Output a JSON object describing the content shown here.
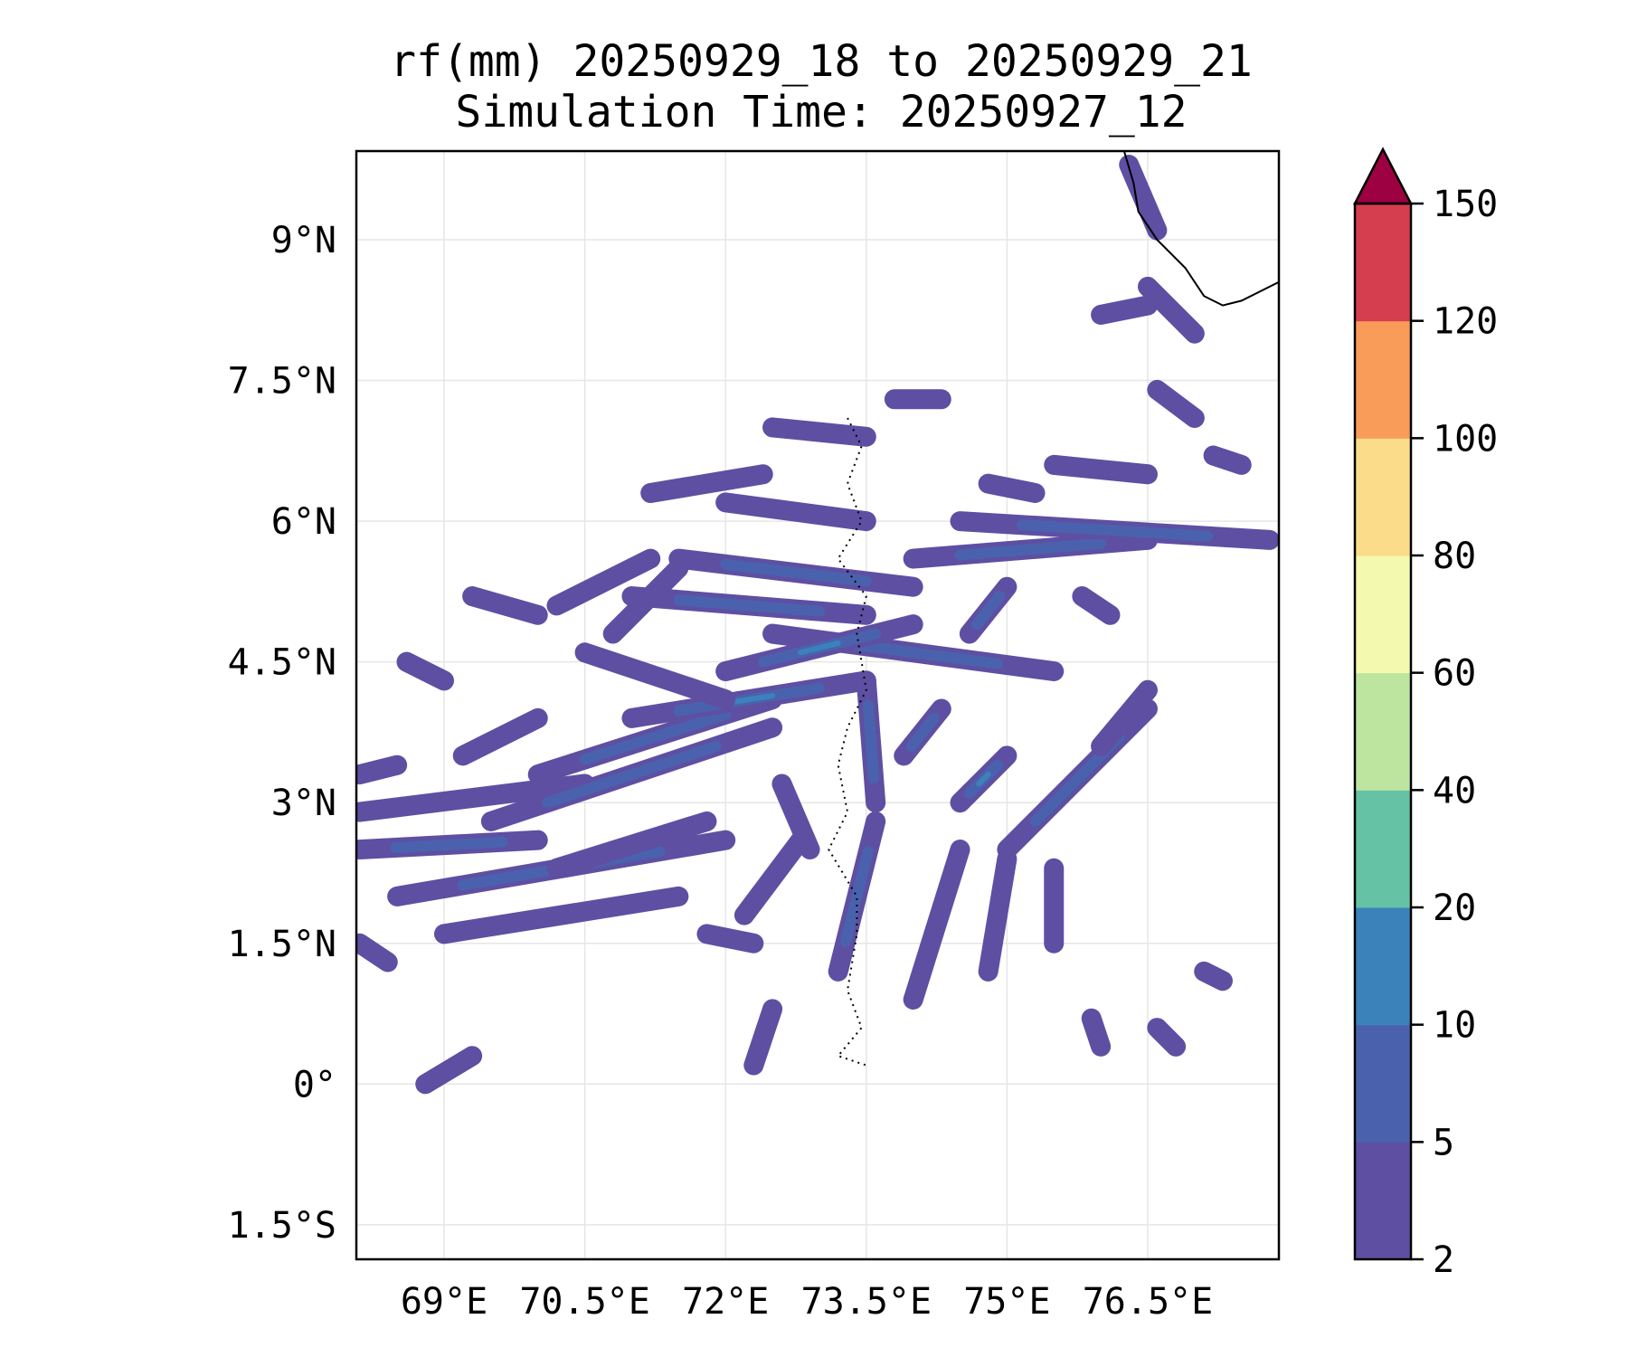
{
  "chart_data": {
    "type": "heatmap",
    "title": "rf(mm) 20250929_18 to 20250929_21",
    "subtitle": "Simulation Time: 20250927_12",
    "xlabel": "",
    "ylabel": "",
    "xlim": [
      68.07,
      77.9
    ],
    "ylim": [
      -1.86,
      9.94
    ],
    "grid": true,
    "x_ticks": [
      69,
      70.5,
      72,
      73.5,
      75,
      76.5
    ],
    "x_tick_labels": [
      "69°E",
      "70.5°E",
      "72°E",
      "73.5°E",
      "75°E",
      "76.5°E"
    ],
    "y_ticks": [
      9,
      7.5,
      6,
      4.5,
      3,
      1.5,
      0,
      -1.5
    ],
    "y_tick_labels": [
      "9°N",
      "7.5°N",
      "6°N",
      "4.5°N",
      "3°N",
      "1.5°N",
      "0°",
      "1.5°S"
    ],
    "colorbar": {
      "levels": [
        2,
        5,
        10,
        20,
        40,
        60,
        80,
        100,
        120,
        150
      ],
      "labels": [
        "2",
        "5",
        "10",
        "20",
        "40",
        "60",
        "80",
        "100",
        "120",
        "150"
      ],
      "colors": [
        "#5e4fa2",
        "#4a62ad",
        "#3b82ba",
        "#66c2a5",
        "#bde5a0",
        "#f3f9ae",
        "#fbdc8b",
        "#f99c59",
        "#d53e4f"
      ],
      "extend_max_color": "#9e0142",
      "placement": "right"
    },
    "rain_streaks": [
      [
        68.1,
        2.9,
        70.5,
        3.2,
        0
      ],
      [
        68.1,
        2.5,
        70.0,
        2.6,
        1
      ],
      [
        68.5,
        2.0,
        72.0,
        2.6,
        1
      ],
      [
        69.0,
        1.6,
        71.5,
        2.0,
        0
      ],
      [
        69.5,
        2.8,
        72.5,
        3.8,
        1
      ],
      [
        70.0,
        3.3,
        72.5,
        4.1,
        1
      ],
      [
        71.0,
        3.9,
        73.5,
        4.3,
        2
      ],
      [
        70.5,
        4.6,
        72.0,
        4.1,
        0
      ],
      [
        68.1,
        3.3,
        68.5,
        3.4,
        0
      ],
      [
        68.1,
        1.5,
        68.4,
        1.3,
        0
      ],
      [
        69.2,
        3.5,
        70.0,
        3.9,
        0
      ],
      [
        70.2,
        2.3,
        71.8,
        2.8,
        0
      ],
      [
        71.0,
        5.2,
        73.5,
        5.0,
        1
      ],
      [
        71.5,
        5.6,
        74.0,
        5.3,
        1
      ],
      [
        72.5,
        4.8,
        75.5,
        4.4,
        1
      ],
      [
        72.0,
        4.4,
        74.0,
        4.9,
        2
      ],
      [
        74.0,
        5.6,
        76.5,
        5.8,
        1
      ],
      [
        74.5,
        6.0,
        77.8,
        5.8,
        1
      ],
      [
        75.5,
        6.6,
        76.5,
        6.5,
        0
      ],
      [
        72.0,
        6.2,
        73.5,
        6.0,
        0
      ],
      [
        72.5,
        7.0,
        73.5,
        6.9,
        0
      ],
      [
        73.8,
        7.3,
        74.3,
        7.3,
        0
      ],
      [
        71.2,
        6.3,
        72.4,
        6.5,
        0
      ],
      [
        74.8,
        6.4,
        75.3,
        6.3,
        0
      ],
      [
        70.8,
        4.8,
        71.5,
        5.5,
        0
      ],
      [
        70.2,
        5.1,
        71.2,
        5.6,
        0
      ],
      [
        69.3,
        5.2,
        70.0,
        5.0,
        0
      ],
      [
        68.6,
        4.5,
        69.0,
        4.3,
        0
      ],
      [
        73.2,
        1.2,
        73.6,
        2.8,
        1
      ],
      [
        74.0,
        0.9,
        74.5,
        2.5,
        0
      ],
      [
        74.8,
        1.2,
        75.0,
        2.4,
        0
      ],
      [
        75.5,
        1.5,
        75.5,
        2.3,
        0
      ],
      [
        75.0,
        2.5,
        76.5,
        4.0,
        1
      ],
      [
        73.6,
        3.0,
        73.5,
        4.3,
        1
      ],
      [
        76.0,
        3.6,
        76.5,
        4.2,
        0
      ],
      [
        72.3,
        0.2,
        72.5,
        0.8,
        0
      ],
      [
        72.2,
        1.8,
        72.8,
        2.6,
        0
      ],
      [
        68.8,
        0.0,
        69.3,
        0.3,
        0
      ],
      [
        73.9,
        3.5,
        74.3,
        4.0,
        1
      ],
      [
        74.5,
        3.0,
        75.0,
        3.5,
        2
      ],
      [
        72.6,
        3.2,
        72.9,
        2.5,
        0
      ],
      [
        71.8,
        1.6,
        72.3,
        1.5,
        0
      ],
      [
        74.6,
        4.8,
        75.0,
        5.3,
        1
      ],
      [
        75.8,
        5.2,
        76.1,
        5.0,
        0
      ],
      [
        76.5,
        8.5,
        77.0,
        8.0,
        0
      ],
      [
        76.3,
        9.8,
        76.6,
        9.1,
        0
      ],
      [
        76.6,
        7.4,
        77.0,
        7.1,
        0
      ],
      [
        76.0,
        8.2,
        76.5,
        8.3,
        0
      ],
      [
        77.2,
        6.7,
        77.5,
        6.6,
        0
      ],
      [
        77.1,
        1.2,
        77.3,
        1.1,
        0
      ],
      [
        76.6,
        0.6,
        76.8,
        0.4,
        0
      ],
      [
        75.9,
        0.7,
        76.0,
        0.4,
        0
      ]
    ],
    "coastline": [
      [
        76.25,
        9.94
      ],
      [
        76.35,
        9.6
      ],
      [
        76.4,
        9.3
      ],
      [
        76.6,
        9.0
      ],
      [
        76.9,
        8.7
      ],
      [
        77.1,
        8.4
      ],
      [
        77.3,
        8.3
      ],
      [
        77.5,
        8.35
      ],
      [
        77.9,
        8.55
      ]
    ],
    "maldives_outline": [
      [
        73.3,
        7.1
      ],
      [
        73.45,
        6.8
      ],
      [
        73.3,
        6.4
      ],
      [
        73.45,
        6.0
      ],
      [
        73.2,
        5.6
      ],
      [
        73.5,
        5.2
      ],
      [
        73.4,
        4.8
      ],
      [
        73.5,
        4.2
      ],
      [
        73.3,
        3.8
      ],
      [
        73.2,
        3.4
      ],
      [
        73.3,
        2.9
      ],
      [
        73.1,
        2.5
      ],
      [
        73.4,
        2.0
      ],
      [
        73.4,
        1.6
      ],
      [
        73.3,
        1.0
      ],
      [
        73.45,
        0.6
      ],
      [
        73.2,
        0.3
      ],
      [
        73.5,
        0.2
      ]
    ]
  }
}
